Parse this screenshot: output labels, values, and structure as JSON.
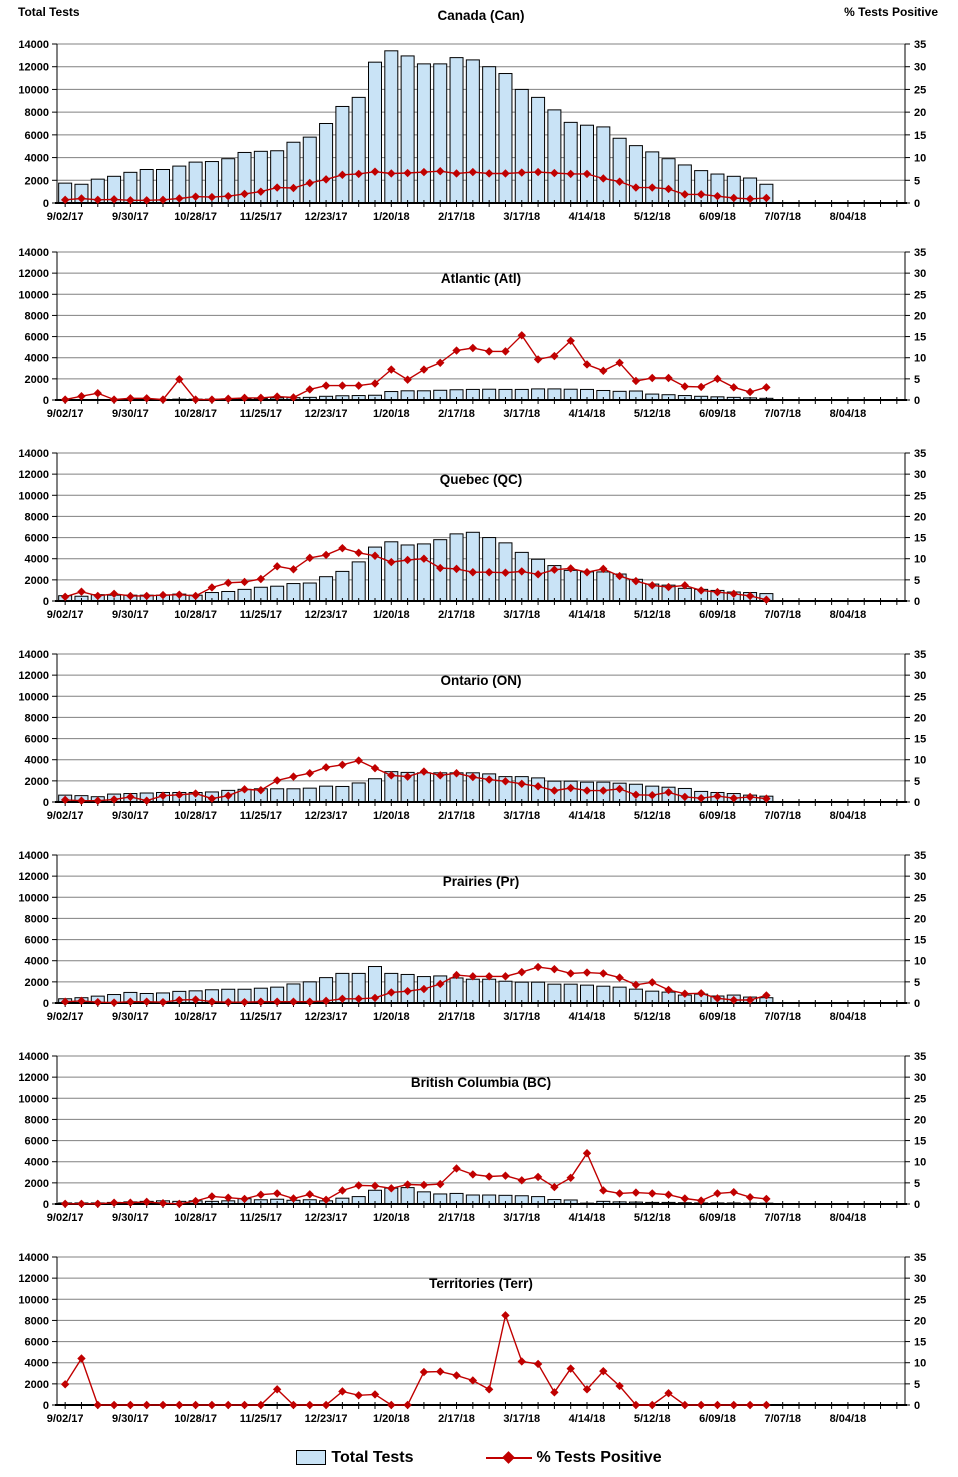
{
  "axis_titles": {
    "left": "Total Tests",
    "right": "% Tests Positive"
  },
  "legend": {
    "items": [
      {
        "label": "Total Tests",
        "swatch": "light-blue-bar"
      },
      {
        "label": "% Tests Positive",
        "swatch": "red-diamond-line"
      }
    ]
  },
  "colors": {
    "bar_fill": "#C9E3F6",
    "bar_stroke": "#000000",
    "line": "#C00000",
    "grid": "#808080",
    "axis": "#000000",
    "text": "#000000"
  },
  "x_axis": {
    "weeks_total": 52,
    "label_every": 4,
    "tick_labels": [
      "9/02/17",
      "9/30/17",
      "10/28/17",
      "11/25/17",
      "12/23/17",
      "1/20/18",
      "2/17/18",
      "3/17/18",
      "4/14/18",
      "5/12/18",
      "6/09/18",
      "7/07/18",
      "8/04/18"
    ]
  },
  "y_axis_left": {
    "min": 0,
    "max": 14000,
    "step": 2000,
    "ticks": [
      "0",
      "2000",
      "4000",
      "6000",
      "8000",
      "10000",
      "12000",
      "14000"
    ]
  },
  "y_axis_right": {
    "min": 0,
    "max": 35,
    "step": 5,
    "ticks": [
      "0",
      "5",
      "10",
      "15",
      "20",
      "25",
      "30",
      "35"
    ]
  },
  "chart_data": [
    {
      "type": "bar+line",
      "title": "Canada (Can)",
      "region": "Canada",
      "abbr": "Can",
      "xlabel": "",
      "ylabel_left": "Total Tests",
      "ylabel_right": "% Tests Positive",
      "ylim_left": [
        0,
        14000
      ],
      "ylim_right": [
        0,
        35
      ],
      "categories": [
        "9/02/17",
        "9/09/17",
        "9/16/17",
        "9/23/17",
        "9/30/17",
        "10/07/17",
        "10/14/17",
        "10/21/17",
        "10/28/17",
        "11/04/17",
        "11/11/17",
        "11/18/17",
        "11/25/17",
        "12/02/17",
        "12/09/17",
        "12/16/17",
        "12/23/17",
        "12/30/17",
        "1/06/18",
        "1/13/18",
        "1/20/18",
        "1/27/18",
        "2/03/18",
        "2/10/18",
        "2/17/18",
        "2/24/18",
        "3/03/18",
        "3/10/18",
        "3/17/18",
        "3/24/18",
        "3/31/18",
        "4/07/18",
        "4/14/18",
        "4/21/18",
        "4/28/18",
        "5/05/18",
        "5/12/18",
        "5/19/18",
        "5/26/18",
        "6/02/18",
        "6/09/18",
        "6/16/18",
        "6/23/18",
        "6/30/18"
      ],
      "series": [
        {
          "name": "Total Tests",
          "type": "bar",
          "axis": "left",
          "values": [
            1750,
            1650,
            2100,
            2350,
            2700,
            2950,
            2950,
            3250,
            3600,
            3650,
            3900,
            4450,
            4550,
            4600,
            5350,
            5800,
            7000,
            8500,
            9300,
            12400,
            13400,
            12950,
            12250,
            12250,
            12800,
            12600,
            12000,
            11400,
            10000,
            9300,
            8200,
            7100,
            6850,
            6700,
            5700,
            5050,
            4500,
            3900,
            3350,
            2850,
            2550,
            2350,
            2200,
            1650
          ]
        },
        {
          "name": "% Tests Positive",
          "type": "line",
          "axis": "right",
          "values": [
            0.7,
            1.0,
            0.7,
            0.8,
            0.6,
            0.6,
            0.7,
            1.0,
            1.4,
            1.3,
            1.5,
            2.0,
            2.5,
            3.4,
            3.3,
            4.4,
            5.2,
            6.2,
            6.4,
            6.9,
            6.5,
            6.6,
            6.8,
            7.0,
            6.5,
            6.8,
            6.5,
            6.5,
            6.7,
            6.8,
            6.6,
            6.4,
            6.4,
            5.4,
            4.7,
            3.4,
            3.4,
            3.1,
            1.9,
            1.9,
            1.5,
            1.1,
            0.9,
            1.1
          ]
        }
      ]
    },
    {
      "type": "bar+line",
      "title": "Atlantic (Atl)",
      "region": "Atlantic",
      "abbr": "Atl",
      "ylim_left": [
        0,
        14000
      ],
      "ylim_right": [
        0,
        35
      ],
      "series": [
        {
          "name": "Total Tests",
          "type": "bar",
          "axis": "left",
          "values": [
            50,
            50,
            50,
            50,
            60,
            60,
            60,
            80,
            80,
            80,
            100,
            120,
            150,
            200,
            220,
            250,
            350,
            400,
            420,
            450,
            800,
            870,
            870,
            920,
            970,
            1000,
            1020,
            1000,
            1000,
            1050,
            1050,
            1020,
            1000,
            900,
            820,
            850,
            560,
            500,
            420,
            350,
            300,
            250,
            200,
            160
          ]
        },
        {
          "name": "% Tests Positive",
          "type": "line",
          "axis": "right",
          "values": [
            0.1,
            0.9,
            1.6,
            0.1,
            0.4,
            0.4,
            0.1,
            4.9,
            0.1,
            0.1,
            0.3,
            0.5,
            0.5,
            0.8,
            0.6,
            2.5,
            3.4,
            3.4,
            3.4,
            3.9,
            7.2,
            4.8,
            7.2,
            8.8,
            11.7,
            12.3,
            11.5,
            11.5,
            15.3,
            9.6,
            10.4,
            14.0,
            8.4,
            6.9,
            8.8,
            4.5,
            5.2,
            5.2,
            3.2,
            3.1,
            5.0,
            3.0,
            1.9,
            3.0
          ]
        }
      ]
    },
    {
      "type": "bar+line",
      "title": "Quebec (QC)",
      "region": "Quebec",
      "abbr": "QC",
      "ylim_left": [
        0,
        14000
      ],
      "ylim_right": [
        0,
        35
      ],
      "series": [
        {
          "name": "Total Tests",
          "type": "bar",
          "axis": "left",
          "values": [
            500,
            450,
            600,
            550,
            550,
            550,
            550,
            650,
            550,
            800,
            900,
            1100,
            1300,
            1400,
            1650,
            1700,
            2300,
            2800,
            3700,
            5100,
            5600,
            5300,
            5400,
            5800,
            6350,
            6500,
            6000,
            5500,
            4600,
            3950,
            3350,
            2900,
            2750,
            2750,
            2550,
            2050,
            1600,
            1500,
            1200,
            1100,
            1000,
            850,
            800,
            700
          ]
        },
        {
          "name": "% Tests Positive",
          "type": "line",
          "axis": "right",
          "values": [
            1.0,
            2.2,
            1.2,
            1.7,
            1.2,
            1.2,
            1.4,
            1.5,
            1.2,
            3.2,
            4.3,
            4.5,
            5.2,
            8.2,
            7.5,
            10.2,
            10.9,
            12.5,
            11.4,
            10.7,
            9.2,
            9.7,
            10.0,
            7.8,
            7.6,
            6.8,
            6.8,
            6.7,
            7.0,
            6.3,
            7.4,
            7.7,
            6.8,
            7.6,
            5.9,
            4.7,
            3.7,
            3.3,
            3.7,
            2.5,
            2.1,
            1.7,
            1.2,
            0.3
          ]
        }
      ]
    },
    {
      "type": "bar+line",
      "title": "Ontario (ON)",
      "region": "Ontario",
      "abbr": "ON",
      "ylim_left": [
        0,
        14000
      ],
      "ylim_right": [
        0,
        35
      ],
      "series": [
        {
          "name": "Total Tests",
          "type": "bar",
          "axis": "left",
          "values": [
            650,
            600,
            500,
            750,
            800,
            850,
            900,
            900,
            900,
            950,
            1100,
            1200,
            1250,
            1250,
            1250,
            1310,
            1500,
            1470,
            1800,
            2200,
            2870,
            2800,
            2760,
            2760,
            2760,
            2760,
            2660,
            2400,
            2400,
            2280,
            1970,
            1970,
            1880,
            1880,
            1780,
            1680,
            1500,
            1400,
            1280,
            1000,
            900,
            800,
            650,
            550
          ]
        },
        {
          "name": "% Tests Positive",
          "type": "line",
          "axis": "right",
          "values": [
            0.5,
            0.3,
            0.3,
            0.6,
            1.2,
            0.3,
            1.5,
            1.7,
            2.0,
            0.8,
            1.5,
            3.0,
            2.8,
            5.1,
            6.0,
            6.8,
            8.2,
            8.8,
            9.8,
            8.0,
            6.3,
            6.0,
            7.2,
            6.3,
            6.8,
            5.9,
            5.3,
            4.9,
            4.3,
            3.7,
            2.7,
            3.3,
            2.7,
            2.7,
            3.1,
            1.7,
            1.6,
            2.3,
            1.2,
            0.9,
            1.4,
            0.9,
            1.2,
            0.8
          ]
        }
      ]
    },
    {
      "type": "bar+line",
      "title": "Prairies (Pr)",
      "region": "Prairies",
      "abbr": "Pr",
      "ylim_left": [
        0,
        14000
      ],
      "ylim_right": [
        0,
        35
      ],
      "series": [
        {
          "name": "Total Tests",
          "type": "bar",
          "axis": "left",
          "values": [
            400,
            500,
            650,
            800,
            1000,
            900,
            950,
            1100,
            1150,
            1250,
            1300,
            1300,
            1400,
            1500,
            1800,
            2000,
            2400,
            2800,
            2800,
            3450,
            2800,
            2700,
            2500,
            2560,
            2370,
            2250,
            2250,
            2060,
            1970,
            1970,
            1780,
            1780,
            1690,
            1590,
            1500,
            1310,
            1120,
            1030,
            750,
            840,
            660,
            750,
            560,
            500
          ]
        },
        {
          "name": "% Tests Positive",
          "type": "line",
          "axis": "right",
          "values": [
            0.3,
            0.5,
            0.2,
            0.1,
            0.3,
            0.3,
            0.2,
            0.7,
            0.8,
            0.3,
            0.2,
            0.2,
            0.3,
            0.3,
            0.3,
            0.3,
            0.5,
            1.0,
            1.0,
            1.2,
            2.5,
            2.8,
            3.3,
            4.5,
            6.6,
            6.3,
            6.3,
            6.3,
            7.3,
            8.5,
            8.0,
            7.0,
            7.2,
            7.0,
            6.0,
            4.3,
            4.9,
            3.1,
            2.2,
            2.3,
            1.1,
            0.7,
            0.7,
            1.8
          ]
        }
      ]
    },
    {
      "type": "bar+line",
      "title": "British Columbia (BC)",
      "region": "British Columbia",
      "abbr": "BC",
      "ylim_left": [
        0,
        14000
      ],
      "ylim_right": [
        0,
        35
      ],
      "series": [
        {
          "name": "Total Tests",
          "type": "bar",
          "axis": "left",
          "values": [
            100,
            100,
            100,
            150,
            200,
            250,
            300,
            250,
            300,
            250,
            300,
            500,
            400,
            450,
            350,
            400,
            300,
            550,
            700,
            1300,
            1500,
            1550,
            1150,
            950,
            1000,
            850,
            850,
            820,
            780,
            700,
            420,
            380,
            80,
            250,
            200,
            180,
            150,
            150,
            120,
            100,
            100,
            100,
            80,
            80
          ]
        },
        {
          "name": "% Tests Positive",
          "type": "line",
          "axis": "right",
          "values": [
            0.05,
            0.05,
            0.05,
            0.3,
            0.3,
            0.5,
            0.2,
            0.05,
            0.7,
            1.8,
            1.5,
            1.2,
            2.2,
            2.5,
            1.3,
            2.3,
            1.0,
            3.2,
            4.4,
            4.3,
            3.7,
            4.6,
            4.5,
            4.7,
            8.4,
            7.0,
            6.5,
            6.7,
            5.6,
            6.4,
            4.0,
            6.2,
            12.0,
            3.2,
            2.5,
            2.7,
            2.5,
            2.2,
            1.3,
            0.8,
            2.5,
            2.8,
            1.6,
            1.2
          ]
        }
      ]
    },
    {
      "type": "bar+line",
      "title": "Territories (Terr)",
      "region": "Territories",
      "abbr": "Terr",
      "ylim_left": [
        0,
        14000
      ],
      "ylim_right": [
        0,
        35
      ],
      "series": [
        {
          "name": "Total Tests",
          "type": "bar",
          "axis": "left",
          "values": [
            20,
            30,
            10,
            10,
            10,
            10,
            10,
            10,
            10,
            10,
            10,
            10,
            20,
            30,
            10,
            10,
            10,
            30,
            30,
            30,
            20,
            20,
            30,
            30,
            40,
            40,
            40,
            40,
            40,
            40,
            30,
            30,
            30,
            30,
            30,
            20,
            20,
            20,
            20,
            20,
            20,
            20,
            20,
            20
          ]
        },
        {
          "name": "% Tests Positive",
          "type": "line",
          "axis": "right",
          "values": [
            4.9,
            11.0,
            0,
            0,
            0,
            0,
            0,
            0,
            0,
            0,
            0,
            0,
            0,
            3.7,
            0,
            0,
            0,
            3.2,
            2.3,
            2.5,
            0,
            0,
            7.8,
            7.9,
            7.0,
            5.8,
            3.7,
            21.2,
            10.3,
            9.7,
            3.0,
            8.6,
            3.7,
            8.0,
            4.5,
            0,
            0,
            2.8,
            0,
            0,
            0,
            0,
            0,
            0
          ]
        }
      ]
    }
  ]
}
